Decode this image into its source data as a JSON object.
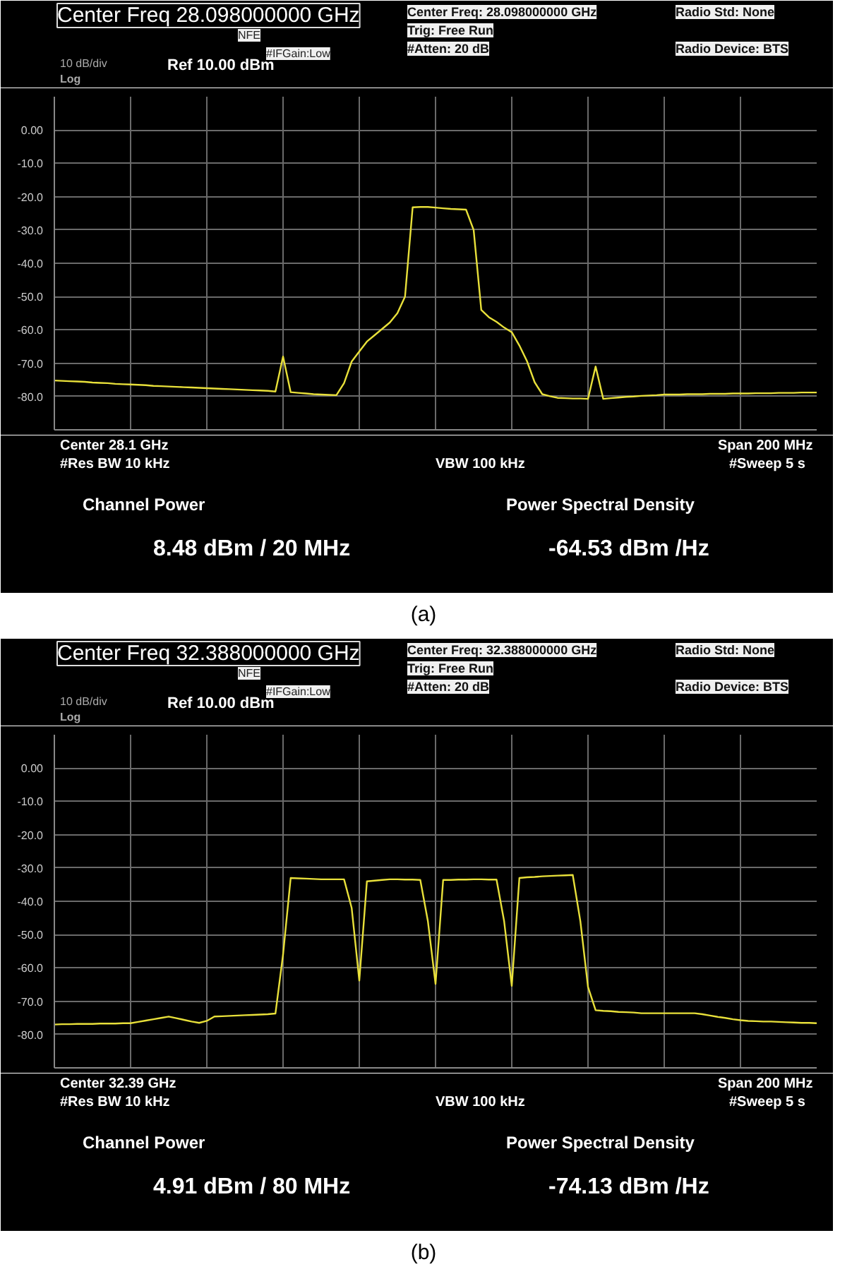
{
  "chart_data": [
    {
      "type": "line",
      "title": "Center Freq 28.098000000 GHz",
      "annotations": [
        "NFE",
        "#IFGain:Low",
        "Center Freq: 28.098000000 GHz",
        "Trig: Free Run",
        "#Atten: 20 dB",
        "Radio Std: None",
        "Radio Device: BTS",
        "10 dB/div",
        "Ref 10.00 dBm",
        "Log",
        "Center 28.1 GHz",
        "#Res BW 10 kHz",
        "VBW 100 kHz",
        "Span 200 MHz",
        "#Sweep 5 s",
        "Channel Power",
        "Power Spectral Density",
        "8.48 dBm / 20 MHz",
        "-64.53 dBm /Hz",
        "(a)"
      ],
      "categories": [
        null,
        null,
        null,
        null,
        null,
        null,
        null,
        null,
        null,
        null,
        null,
        null,
        null,
        null,
        null,
        null,
        null,
        null,
        null,
        null,
        null,
        null,
        null,
        null,
        null,
        null,
        null,
        null,
        null,
        null,
        null,
        null,
        null,
        null,
        null,
        null,
        null,
        null,
        null,
        null,
        null,
        null,
        null,
        null,
        null,
        null,
        null,
        null,
        null,
        null,
        null,
        null,
        null,
        null,
        null,
        null,
        null,
        null,
        null,
        null,
        null,
        null,
        null,
        null,
        null,
        null,
        null,
        null,
        null,
        null,
        null,
        null,
        null,
        null,
        null,
        null,
        null,
        null,
        null,
        null,
        null,
        null,
        null,
        null,
        null,
        null,
        null,
        null,
        null,
        null,
        null,
        null,
        null,
        null,
        null,
        null,
        null,
        null,
        null,
        null,
        null
      ],
      "series": [
        {
          "color": "#e8e03a",
          "values": [
            -75.2,
            -75.3,
            -75.4,
            -75.5,
            -75.6,
            -75.8,
            -75.9,
            -76.0,
            -76.2,
            -76.3,
            -76.4,
            -76.5,
            -76.6,
            -76.8,
            -76.9,
            -77.0,
            -77.1,
            -77.2,
            -77.3,
            -77.4,
            -77.5,
            -77.6,
            -77.7,
            -77.8,
            -77.9,
            -78.0,
            -78.1,
            -78.2,
            -78.3,
            -78.5,
            -68,
            -78.7,
            -78.9,
            -79.1,
            -79.3,
            -79.4,
            -79.5,
            -79.6,
            -76,
            -69.5,
            -66.5,
            -63.5,
            -61.6,
            -59.7,
            -57.8,
            -55,
            -50,
            -23.2,
            -23.1,
            -23.1,
            -23.3,
            -23.5,
            -23.7,
            -23.8,
            -23.9,
            -30,
            -54,
            -56.2,
            -57.6,
            -59.3,
            -60.7,
            -64.7,
            -69.4,
            -75.7,
            -79.3,
            -79.9,
            -80.4,
            -80.5,
            -80.6,
            -80.6,
            -80.7,
            -71,
            -80.7,
            -80.5,
            -80.3,
            -80.1,
            -80.0,
            -79.8,
            -79.7,
            -79.6,
            -79.4,
            -79.4,
            -79.4,
            -79.3,
            -79.3,
            -79.3,
            -79.2,
            -79.2,
            -79.2,
            -79.1,
            -79.1,
            -79.1,
            -79.0,
            -79.0,
            -79.0,
            -78.9,
            -78.9,
            -78.9,
            -78.8,
            -78.8,
            -78.8
          ]
        }
      ],
      "ylim": [
        -90,
        10
      ],
      "yticks": [
        {
          "value": 10,
          "label": null
        },
        {
          "value": 0,
          "label": "0.00"
        },
        {
          "value": -10,
          "label": "-10.0"
        },
        {
          "value": -20,
          "label": "-20.0"
        },
        {
          "value": -30,
          "label": "-30.0"
        },
        {
          "value": -40,
          "label": "-40.0"
        },
        {
          "value": -50,
          "label": "-50.0"
        },
        {
          "value": -60,
          "label": "-60.0"
        },
        {
          "value": -70,
          "label": "-70.0"
        },
        {
          "value": -80,
          "label": "-80.0"
        },
        {
          "value": -90,
          "label": null
        }
      ],
      "grid": true,
      "tick_labels": "y",
      "marker": "none",
      "line_style": "solid"
    },
    {
      "type": "line",
      "title": "Center Freq 32.388000000 GHz",
      "annotations": [
        "NFE",
        "#IFGain:Low",
        "Center Freq: 32.388000000 GHz",
        "Trig: Free Run",
        "#Atten: 20 dB",
        "Radio Std: None",
        "Radio Device: BTS",
        "10 dB/div",
        "Ref 10.00 dBm",
        "Log",
        "Center 32.39 GHz",
        "#Res BW 10 kHz",
        "VBW 100 kHz",
        "Span 200 MHz",
        "#Sweep 5 s",
        "Channel Power",
        "Power Spectral Density",
        "4.91 dBm / 80 MHz",
        "-74.13 dBm /Hz",
        "(b)"
      ],
      "categories": [
        null,
        null,
        null,
        null,
        null,
        null,
        null,
        null,
        null,
        null,
        null,
        null,
        null,
        null,
        null,
        null,
        null,
        null,
        null,
        null,
        null,
        null,
        null,
        null,
        null,
        null,
        null,
        null,
        null,
        null,
        null,
        null,
        null,
        null,
        null,
        null,
        null,
        null,
        null,
        null,
        null,
        null,
        null,
        null,
        null,
        null,
        null,
        null,
        null,
        null,
        null,
        null,
        null,
        null,
        null,
        null,
        null,
        null,
        null,
        null,
        null,
        null,
        null,
        null,
        null,
        null,
        null,
        null,
        null,
        null,
        null,
        null,
        null,
        null,
        null,
        null,
        null,
        null,
        null,
        null,
        null,
        null,
        null,
        null,
        null,
        null,
        null,
        null,
        null,
        null,
        null,
        null,
        null,
        null,
        null,
        null,
        null,
        null,
        null,
        null,
        null
      ],
      "series": [
        {
          "color": "#e8e03a",
          "values": [
            -77.0,
            -76.9,
            -76.9,
            -76.8,
            -76.8,
            -76.8,
            -76.7,
            -76.7,
            -76.7,
            -76.6,
            -76.6,
            -76.2,
            -75.8,
            -75.4,
            -75.0,
            -74.6,
            -75.1,
            -75.6,
            -76.1,
            -76.5,
            -75.9,
            -74.6,
            -74.5,
            -74.4,
            -74.3,
            -74.2,
            -74.1,
            -74.0,
            -73.9,
            -73.7,
            -56,
            -33.0,
            -33.1,
            -33.2,
            -33.3,
            -33.4,
            -33.4,
            -33.4,
            -33.4,
            -42,
            -63.8,
            -34,
            -33.8,
            -33.6,
            -33.4,
            -33.4,
            -33.5,
            -33.5,
            -33.6,
            -46,
            -64.8,
            -33.6,
            -33.6,
            -33.5,
            -33.5,
            -33.4,
            -33.4,
            -33.5,
            -33.5,
            -46,
            -65.4,
            -33,
            -32.8,
            -32.7,
            -32.5,
            -32.4,
            -32.3,
            -32.2,
            -32.1,
            -46,
            -65.7,
            -72.7,
            -72.9,
            -73.0,
            -73.2,
            -73.3,
            -73.4,
            -73.6,
            -73.6,
            -73.6,
            -73.6,
            -73.6,
            -73.6,
            -73.6,
            -73.6,
            -73.9,
            -74.3,
            -74.7,
            -75.0,
            -75.4,
            -75.7,
            -75.9,
            -76.0,
            -76.1,
            -76.1,
            -76.2,
            -76.3,
            -76.4,
            -76.5,
            -76.5,
            -76.6
          ]
        }
      ],
      "ylim": [
        -90,
        10
      ],
      "yticks": [
        {
          "value": 10,
          "label": null
        },
        {
          "value": 0,
          "label": "0.00"
        },
        {
          "value": -10,
          "label": "-10.0"
        },
        {
          "value": -20,
          "label": "-20.0"
        },
        {
          "value": -30,
          "label": "-30.0"
        },
        {
          "value": -40,
          "label": "-40.0"
        },
        {
          "value": -50,
          "label": "-50.0"
        },
        {
          "value": -60,
          "label": "-60.0"
        },
        {
          "value": -70,
          "label": "-70.0"
        },
        {
          "value": -80,
          "label": "-80.0"
        },
        {
          "value": -90,
          "label": null
        }
      ],
      "grid": true,
      "tick_labels": "y",
      "marker": "none",
      "line_style": "solid"
    }
  ]
}
